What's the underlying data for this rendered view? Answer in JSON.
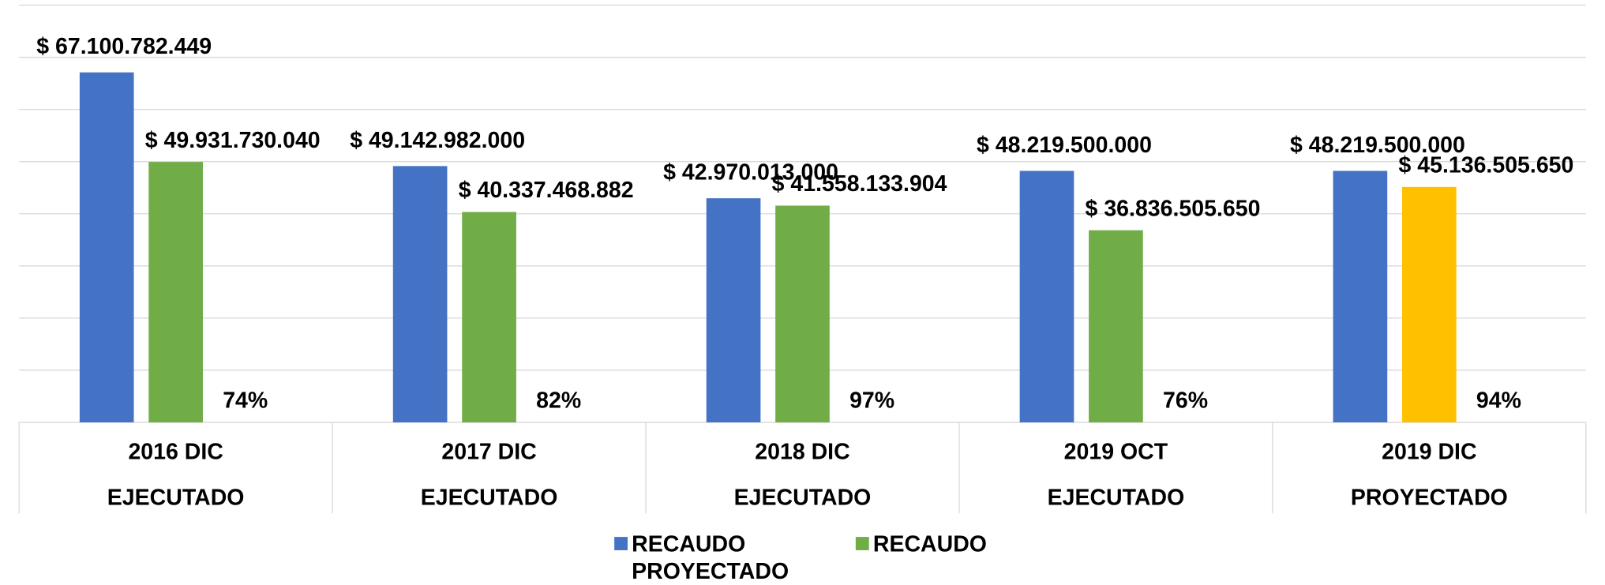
{
  "chart_data": {
    "type": "bar",
    "categories": [
      [
        "2016 DIC",
        "EJECUTADO"
      ],
      [
        "2017 DIC",
        "EJECUTADO"
      ],
      [
        "2018 DIC",
        "EJECUTADO"
      ],
      [
        "2019 OCT",
        "EJECUTADO"
      ],
      [
        "2019 DIC",
        "PROYECTADO"
      ]
    ],
    "series": [
      {
        "name": "RECAUDO PROYECTADO",
        "color": "#4472c4",
        "values": [
          67100782449,
          49142982000,
          42970013000,
          48219500000,
          48219500000
        ],
        "value_labels": [
          "$ 67.100.782.449",
          "$ 49.142.982.000",
          "$ 42.970.013.000",
          "$ 48.219.500.000",
          "$ 48.219.500.000"
        ]
      },
      {
        "name": "RECAUDO",
        "color": "#70ad47",
        "colors": [
          "#70ad47",
          "#70ad47",
          "#70ad47",
          "#70ad47",
          "#ffc000"
        ],
        "values": [
          49931730040,
          40337468882,
          41558133904,
          36836505650,
          45136505650
        ],
        "value_labels": [
          "$ 49.931.730.040",
          "$ 40.337.468.882",
          "$ 41.558.133.904",
          "$ 36.836.505.650",
          "$ 45.136.505.650"
        ]
      }
    ],
    "ratio_labels": [
      "74%",
      "82%",
      "97%",
      "76%",
      "94%"
    ],
    "ylim": [
      0,
      80000000000
    ],
    "yticks": [
      0,
      10000000000,
      20000000000,
      30000000000,
      40000000000,
      50000000000,
      60000000000,
      70000000000,
      80000000000
    ],
    "grid": true,
    "legend": "bottom"
  }
}
